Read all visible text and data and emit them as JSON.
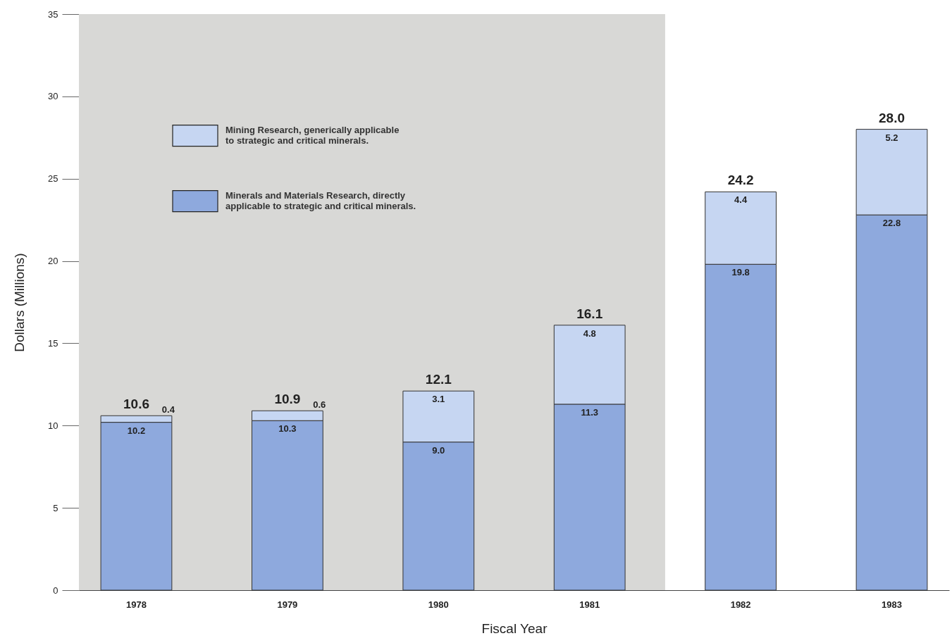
{
  "chart_data": {
    "type": "bar",
    "ylabel": "Dollars (Millions)",
    "xlabel": "Fiscal Year",
    "categories": [
      "1978",
      "1979",
      "1980",
      "1981",
      "1982",
      "1983"
    ],
    "stacked": true,
    "series": [
      {
        "name": "Minerals and Materials Research, directly applicable to strategic and critical minerals.",
        "color": "#8ea9dd",
        "values": [
          10.2,
          10.3,
          9.0,
          11.3,
          19.8,
          22.8
        ],
        "value_labels": [
          "10.2",
          "10.3",
          "9.0",
          "11.3",
          "19.8",
          "22.8"
        ]
      },
      {
        "name": "Mining Research, generically applicable to strategic and critical minerals.",
        "color": "#c6d6f2",
        "values": [
          0.4,
          0.6,
          3.1,
          4.8,
          4.4,
          5.2
        ],
        "value_labels": [
          "0.4",
          "0.6",
          "3.1",
          "4.8",
          "4.4",
          "5.2"
        ]
      }
    ],
    "totals": [
      "10.6",
      "10.9",
      "12.1",
      "16.1",
      "24.2",
      "28.0"
    ],
    "ylim": [
      0,
      35
    ],
    "yticks": [
      0,
      5,
      10,
      15,
      20,
      25,
      30,
      35
    ],
    "bands": [
      {
        "axis": "x",
        "from": "1978",
        "to": "1981",
        "color": "#d8d8d6"
      }
    ],
    "legend": "top left",
    "grid": false
  }
}
